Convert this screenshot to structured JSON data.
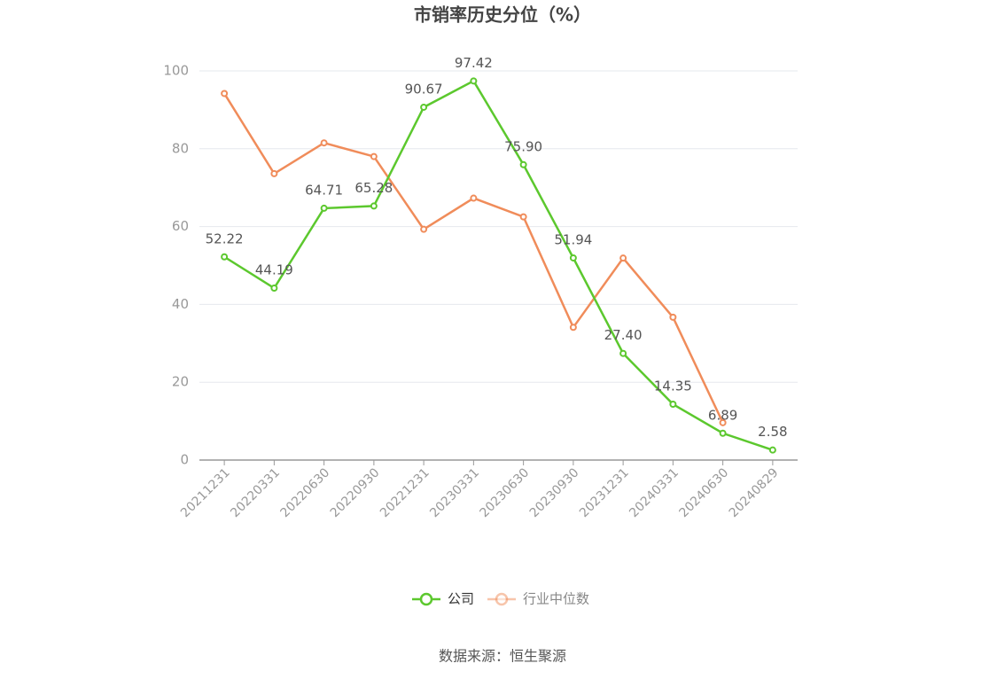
{
  "chart_data": {
    "type": "line",
    "title": "市销率历史分位（%）",
    "categories": [
      "20211231",
      "20220331",
      "20220630",
      "20220930",
      "20221231",
      "20230331",
      "20230630",
      "20230930",
      "20231231",
      "20240331",
      "20240630",
      "20240829"
    ],
    "series": [
      {
        "name": "公司",
        "color": "#5cc82e",
        "values": [
          52.22,
          44.19,
          64.71,
          65.28,
          90.67,
          97.42,
          75.9,
          51.94,
          27.4,
          14.35,
          6.89,
          2.58
        ],
        "value_labels": [
          "52.22",
          "44.19",
          "64.71",
          "65.28",
          "90.67",
          "97.42",
          "75.90",
          "51.94",
          "27.40",
          "14.35",
          "6.89",
          "2.58"
        ]
      },
      {
        "name": "行业中位数",
        "color": "#f08c5a",
        "values": [
          94.2,
          73.6,
          81.5,
          78.0,
          59.3,
          67.3,
          62.5,
          34.1,
          51.9,
          36.7,
          9.6,
          null
        ]
      }
    ],
    "ylim": [
      0,
      100
    ],
    "yticks": [
      0,
      20,
      40,
      60,
      80,
      100
    ],
    "grid": true,
    "source": "数据来源：恒生聚源"
  }
}
